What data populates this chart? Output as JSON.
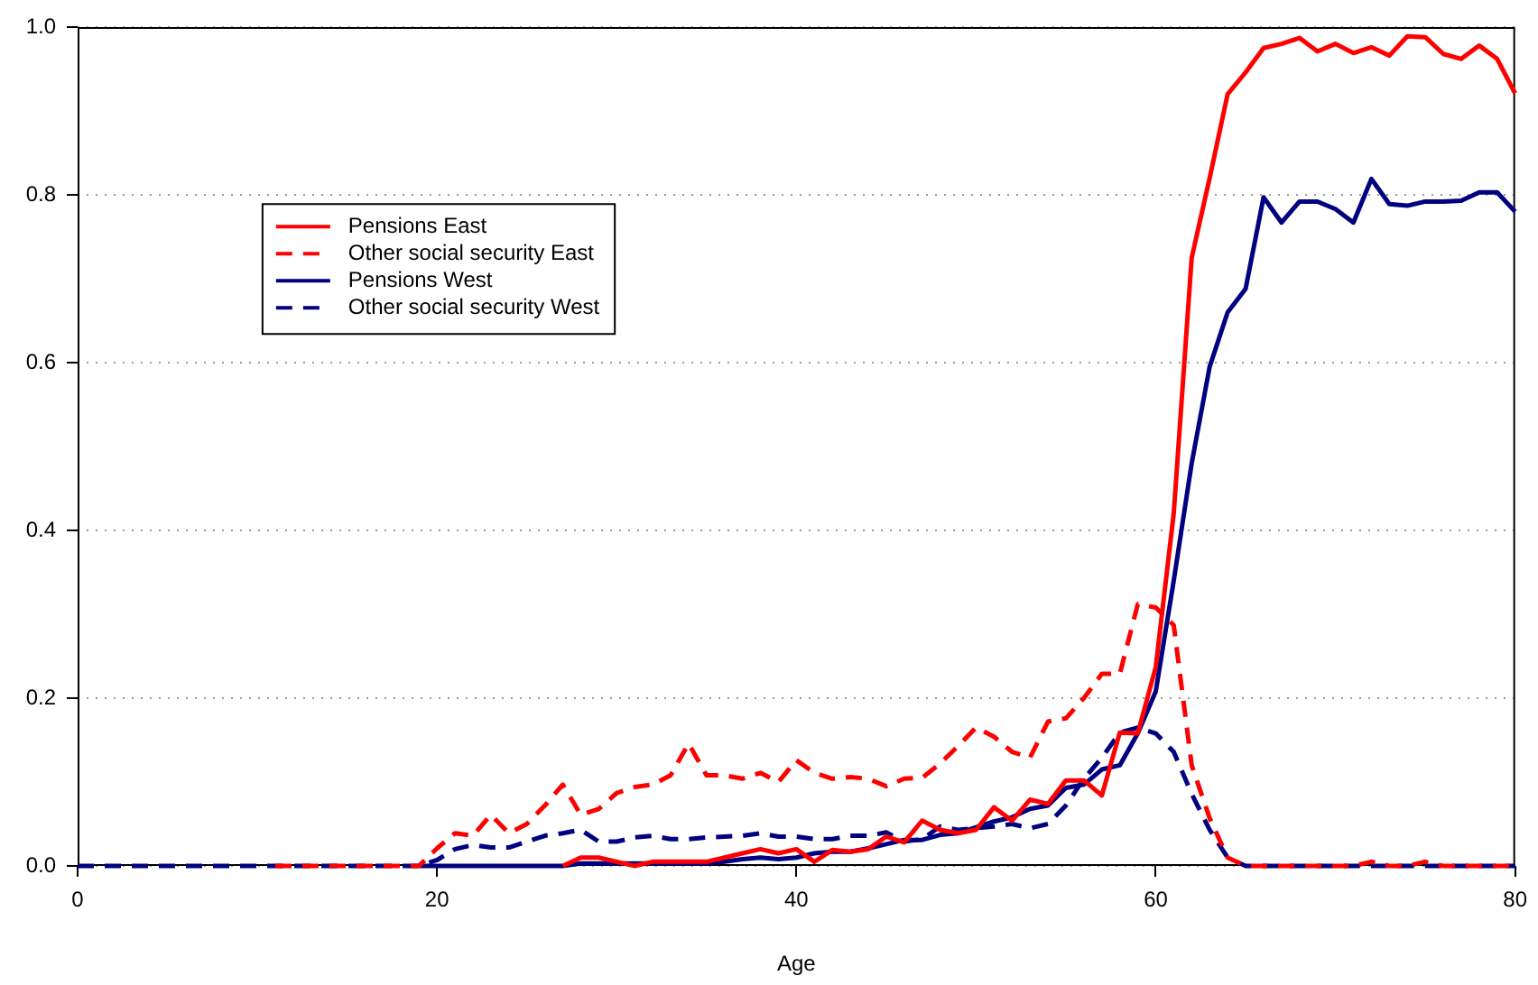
{
  "chart_data": {
    "type": "line",
    "xlabel": "Age",
    "x": [
      0,
      1,
      2,
      3,
      4,
      5,
      6,
      7,
      8,
      9,
      10,
      11,
      12,
      13,
      14,
      15,
      16,
      17,
      18,
      19,
      20,
      21,
      22,
      23,
      24,
      25,
      26,
      27,
      28,
      29,
      30,
      31,
      32,
      33,
      34,
      35,
      36,
      37,
      38,
      39,
      40,
      41,
      42,
      43,
      44,
      45,
      46,
      47,
      48,
      49,
      50,
      51,
      52,
      53,
      54,
      55,
      56,
      57,
      58,
      59,
      60,
      61,
      62,
      63,
      64,
      65,
      66,
      67,
      68,
      69,
      70,
      71,
      72,
      73,
      74,
      75,
      76,
      77,
      78,
      79,
      80
    ],
    "xlim": [
      0,
      80
    ],
    "xticks": [
      0,
      20,
      40,
      60,
      80
    ],
    "ylim": [
      0,
      1
    ],
    "yticks": [
      {
        "value": 0,
        "label": "0.0"
      },
      {
        "value": 0.2,
        "label": "0.2"
      },
      {
        "value": 0.4,
        "label": "0.4"
      },
      {
        "value": 0.6,
        "label": "0.6"
      },
      {
        "value": 0.8,
        "label": "0.8"
      },
      {
        "value": 1,
        "label": "1.0"
      }
    ],
    "grid": "y",
    "legend": "top left",
    "marker": "none",
    "series": [
      {
        "name": "Pensions East",
        "color": "#ff0000",
        "line_style": "solid",
        "values": [
          null,
          null,
          null,
          null,
          null,
          null,
          null,
          null,
          null,
          null,
          null,
          null,
          null,
          null,
          null,
          null,
          null,
          null,
          null,
          null,
          null,
          null,
          null,
          null,
          null,
          null,
          null,
          0,
          0.01,
          0.01,
          0.005,
          0,
          0.005,
          0.005,
          0.005,
          0.005,
          0.01,
          0.015,
          0.02,
          0.015,
          0.02,
          0.005,
          0.019,
          0.017,
          0.02,
          0.035,
          0.028,
          0.054,
          0.043,
          0.039,
          0.043,
          0.07,
          0.054,
          0.079,
          0.074,
          0.102,
          0.102,
          0.084,
          0.159,
          0.158,
          0.237,
          0.42,
          0.725,
          0.82,
          0.92,
          0.946,
          0.975,
          0.98,
          0.987,
          0.971,
          0.98,
          0.969,
          0.976,
          0.966,
          0.989,
          0.988,
          0.968,
          0.962,
          0.978,
          0.962,
          0.921
        ]
      },
      {
        "name": "Other social security East",
        "color": "#ff0000",
        "line_style": "dashed",
        "values": [
          null,
          null,
          null,
          null,
          null,
          null,
          null,
          null,
          null,
          null,
          null,
          0,
          0,
          0,
          0,
          0,
          0,
          0,
          0,
          0,
          0.021,
          0.039,
          0.036,
          0.061,
          0.039,
          0.05,
          0.072,
          0.097,
          0.061,
          0.068,
          0.087,
          0.094,
          0.097,
          0.108,
          0.146,
          0.108,
          0.108,
          0.104,
          0.111,
          0.1,
          0.126,
          0.111,
          0.104,
          0.106,
          0.104,
          0.095,
          0.104,
          0.105,
          0.122,
          0.143,
          0.165,
          0.154,
          0.136,
          0.129,
          0.172,
          0.176,
          0.2,
          0.229,
          0.229,
          0.312,
          0.308,
          0.287,
          0.12,
          0.057,
          0.01,
          0,
          0,
          0,
          0,
          0,
          0,
          0,
          0.005,
          0,
          0,
          0.005,
          0,
          0,
          0,
          0,
          0
        ]
      },
      {
        "name": "Pensions West",
        "color": "#000080",
        "line_style": "solid",
        "values": [
          null,
          null,
          null,
          null,
          null,
          null,
          null,
          null,
          null,
          null,
          null,
          null,
          null,
          null,
          null,
          null,
          null,
          null,
          null,
          0,
          0,
          0,
          0,
          0,
          0,
          0,
          0,
          0,
          0.003,
          0.003,
          0.003,
          0.003,
          0.003,
          0.003,
          0.003,
          0.003,
          0.005,
          0.008,
          0.01,
          0.008,
          0.01,
          0.015,
          0.017,
          0.017,
          0.021,
          0.026,
          0.031,
          0.031,
          0.037,
          0.039,
          0.046,
          0.053,
          0.058,
          0.068,
          0.072,
          0.093,
          0.097,
          0.115,
          0.12,
          0.158,
          0.208,
          0.34,
          0.48,
          0.595,
          0.66,
          0.688,
          0.797,
          0.767,
          0.792,
          0.792,
          0.783,
          0.767,
          0.819,
          0.789,
          0.787,
          0.792,
          0.792,
          0.793,
          0.803,
          0.803,
          0.78
        ]
      },
      {
        "name": "Other social security West",
        "color": "#000080",
        "line_style": "dashed",
        "values": [
          0,
          0,
          0,
          0,
          0,
          0,
          0,
          0,
          0,
          0,
          0,
          0,
          0,
          0,
          0,
          0,
          0,
          0,
          0,
          0,
          0.007,
          0.02,
          0.025,
          0.022,
          0.022,
          0.029,
          0.036,
          0.039,
          0.043,
          0.029,
          0.029,
          0.034,
          0.036,
          0.032,
          0.032,
          0.034,
          0.035,
          0.036,
          0.039,
          0.035,
          0.035,
          0.032,
          0.032,
          0.036,
          0.036,
          0.04,
          0.029,
          0.032,
          0.047,
          0.043,
          0.045,
          0.047,
          0.05,
          0.045,
          0.05,
          0.072,
          0.104,
          0.129,
          0.159,
          0.165,
          0.158,
          0.136,
          0.086,
          0.043,
          0.01,
          0,
          0,
          0,
          0,
          0,
          0,
          0,
          0,
          0,
          0,
          0,
          0,
          0,
          0,
          0,
          0
        ]
      }
    ]
  }
}
